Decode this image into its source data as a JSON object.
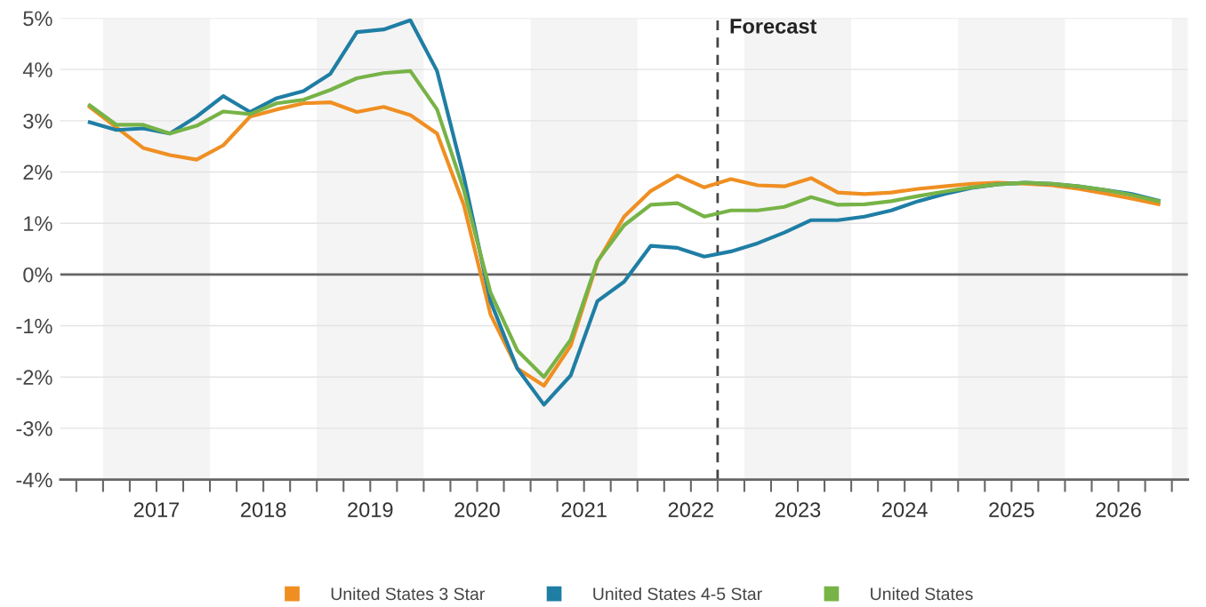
{
  "chart_data": {
    "type": "line",
    "x": [
      2016.875,
      2017.125,
      2017.375,
      2017.625,
      2017.875,
      2018.125,
      2018.375,
      2018.625,
      2018.875,
      2019.125,
      2019.375,
      2019.625,
      2019.875,
      2020.125,
      2020.375,
      2020.625,
      2020.875,
      2021.125,
      2021.375,
      2021.625,
      2021.875,
      2022.125,
      2022.375,
      2022.625,
      2022.875,
      2023.125,
      2023.375,
      2023.625,
      2023.875,
      2024.125,
      2024.375,
      2024.625,
      2024.875,
      2025.125,
      2025.375,
      2025.625,
      2025.875,
      2026.125,
      2026.375,
      2026.625,
      2026.875
    ],
    "series": [
      {
        "name": "United States 3 Star",
        "color": "#ef8f22",
        "values": [
          3.27,
          2.87,
          2.47,
          2.33,
          2.24,
          2.52,
          3.08,
          3.22,
          3.34,
          3.36,
          3.17,
          3.27,
          3.11,
          2.75,
          1.36,
          -0.78,
          -1.83,
          -2.17,
          -1.39,
          0.24,
          1.13,
          1.63,
          1.93,
          1.7,
          1.86,
          1.74,
          1.72,
          1.88,
          1.6,
          1.57,
          1.6,
          1.67,
          1.72,
          1.77,
          1.79,
          1.77,
          1.74,
          1.67,
          1.58,
          1.48,
          1.37
        ]
      },
      {
        "name": "United States 4-5 Star",
        "color": "#1f7ea4",
        "values": [
          2.97,
          2.82,
          2.85,
          2.75,
          3.08,
          3.48,
          3.17,
          3.44,
          3.58,
          3.91,
          4.73,
          4.78,
          4.96,
          3.97,
          1.91,
          -0.52,
          -1.83,
          -2.54,
          -1.97,
          -0.52,
          -0.14,
          0.56,
          0.52,
          0.35,
          0.45,
          0.61,
          0.82,
          1.06,
          1.06,
          1.13,
          1.25,
          1.43,
          1.57,
          1.69,
          1.76,
          1.79,
          1.77,
          1.72,
          1.65,
          1.57,
          1.44
        ]
      },
      {
        "name": "United States",
        "color": "#77b347",
        "values": [
          3.3,
          2.92,
          2.92,
          2.75,
          2.9,
          3.18,
          3.13,
          3.34,
          3.41,
          3.6,
          3.83,
          3.93,
          3.97,
          3.22,
          1.65,
          -0.35,
          -1.48,
          -2.0,
          -1.27,
          0.26,
          0.96,
          1.36,
          1.39,
          1.13,
          1.25,
          1.25,
          1.32,
          1.51,
          1.36,
          1.37,
          1.43,
          1.53,
          1.62,
          1.7,
          1.76,
          1.79,
          1.77,
          1.72,
          1.65,
          1.55,
          1.43
        ]
      }
    ],
    "xlim": [
      2016.6,
      2027.15
    ],
    "ylim": [
      -4,
      5
    ],
    "yticks": [
      {
        "value": -4,
        "label": "-4%"
      },
      {
        "value": -3,
        "label": "-3%"
      },
      {
        "value": -2,
        "label": "-2%"
      },
      {
        "value": -1,
        "label": "-1%"
      },
      {
        "value": 0,
        "label": "0%"
      },
      {
        "value": 1,
        "label": "1%"
      },
      {
        "value": 2,
        "label": "2%"
      },
      {
        "value": 3,
        "label": "3%"
      },
      {
        "value": 4,
        "label": "4%"
      },
      {
        "value": 5,
        "label": "5%"
      }
    ],
    "xticks": [
      {
        "value": 2016.75,
        "label": null
      },
      {
        "value": 2017,
        "label": null
      },
      {
        "value": 2017.25,
        "label": null
      },
      {
        "value": 2017.5,
        "label": "2017"
      },
      {
        "value": 2017.75,
        "label": null
      },
      {
        "value": 2018,
        "label": null
      },
      {
        "value": 2018.25,
        "label": null
      },
      {
        "value": 2018.5,
        "label": "2018"
      },
      {
        "value": 2018.75,
        "label": null
      },
      {
        "value": 2019,
        "label": null
      },
      {
        "value": 2019.25,
        "label": null
      },
      {
        "value": 2019.5,
        "label": "2019"
      },
      {
        "value": 2019.75,
        "label": null
      },
      {
        "value": 2020,
        "label": null
      },
      {
        "value": 2020.25,
        "label": null
      },
      {
        "value": 2020.5,
        "label": "2020"
      },
      {
        "value": 2020.75,
        "label": null
      },
      {
        "value": 2021,
        "label": null
      },
      {
        "value": 2021.25,
        "label": null
      },
      {
        "value": 2021.5,
        "label": "2021"
      },
      {
        "value": 2021.75,
        "label": null
      },
      {
        "value": 2022,
        "label": null
      },
      {
        "value": 2022.25,
        "label": null
      },
      {
        "value": 2022.5,
        "label": "2022"
      },
      {
        "value": 2022.75,
        "label": null
      },
      {
        "value": 2023,
        "label": null
      },
      {
        "value": 2023.25,
        "label": null
      },
      {
        "value": 2023.5,
        "label": "2023"
      },
      {
        "value": 2023.75,
        "label": null
      },
      {
        "value": 2024,
        "label": null
      },
      {
        "value": 2024.25,
        "label": null
      },
      {
        "value": 2024.5,
        "label": "2024"
      },
      {
        "value": 2024.75,
        "label": null
      },
      {
        "value": 2025,
        "label": null
      },
      {
        "value": 2025.25,
        "label": null
      },
      {
        "value": 2025.5,
        "label": "2025"
      },
      {
        "value": 2025.75,
        "label": null
      },
      {
        "value": 2026,
        "label": null
      },
      {
        "value": 2026.25,
        "label": null
      },
      {
        "value": 2026.5,
        "label": "2026"
      },
      {
        "value": 2026.75,
        "label": null
      },
      {
        "value": 2027,
        "label": null
      }
    ],
    "bands": [
      {
        "axis": "x",
        "from": 2017,
        "to": 2018,
        "color": "#f4f4f4"
      },
      {
        "axis": "x",
        "from": 2019,
        "to": 2020,
        "color": "#f4f4f4"
      },
      {
        "axis": "x",
        "from": 2021,
        "to": 2022,
        "color": "#f4f4f4"
      },
      {
        "axis": "x",
        "from": 2023,
        "to": 2024,
        "color": "#f4f4f4"
      },
      {
        "axis": "x",
        "from": 2025,
        "to": 2026,
        "color": "#f4f4f4"
      },
      {
        "axis": "x",
        "from": 2027,
        "to": 2027.15,
        "color": "#f4f4f4"
      }
    ],
    "ref_lines": [
      {
        "axis": "y",
        "value": 0,
        "color": "#666666",
        "line_style": "solid"
      },
      {
        "axis": "x",
        "value": 2022.75,
        "label": "Forecast",
        "color": "#444444",
        "line_style": "dashed"
      }
    ],
    "grid": "y",
    "legend": "bottom",
    "marker": "none",
    "line_style": "solid"
  }
}
